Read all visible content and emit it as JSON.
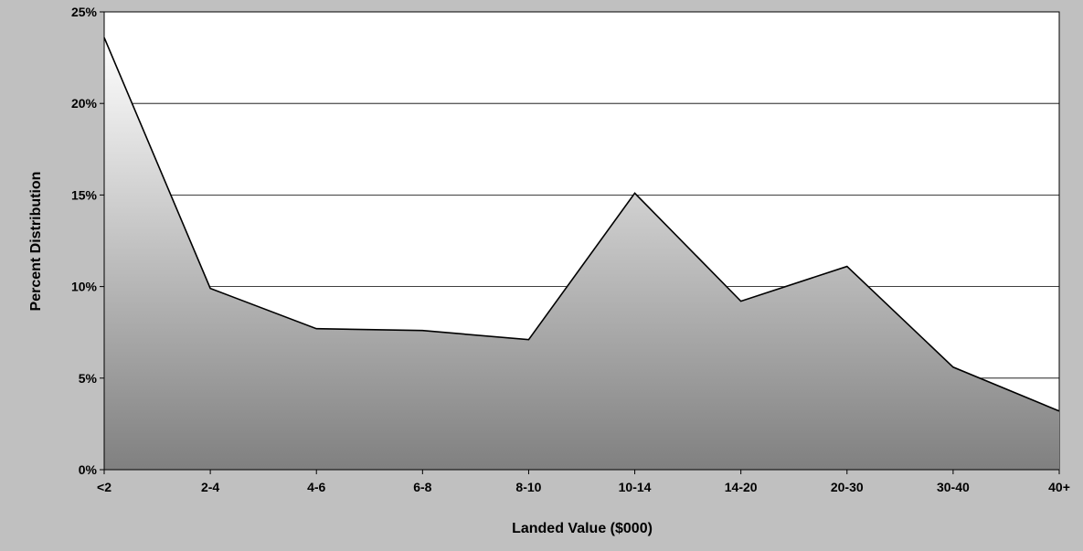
{
  "chart_data": {
    "type": "area",
    "title": "",
    "xlabel": "Landed Value ($000)",
    "ylabel": "Percent Distribution",
    "categories": [
      "<2",
      "2-4",
      "4-6",
      "6-8",
      "8-10",
      "10-14",
      "14-20",
      "20-30",
      "30-40",
      "40+"
    ],
    "series": [
      {
        "values": [
          23.6,
          9.9,
          7.7,
          7.6,
          7.1,
          15.1,
          9.2,
          11.1,
          5.6,
          3.2
        ]
      }
    ],
    "ylim": [
      0,
      25
    ],
    "yticks": [
      0,
      5,
      10,
      15,
      20,
      25
    ],
    "ytick_labels": [
      "0%",
      "5%",
      "10%",
      "15%",
      "20%",
      "25%"
    ],
    "grid": true,
    "legend": "none",
    "colors": {
      "background": "#c0c0c0",
      "plot_area": "#ffffff",
      "fill_top": "#ffffff",
      "fill_bottom": "#808080",
      "line": "#000000"
    }
  }
}
